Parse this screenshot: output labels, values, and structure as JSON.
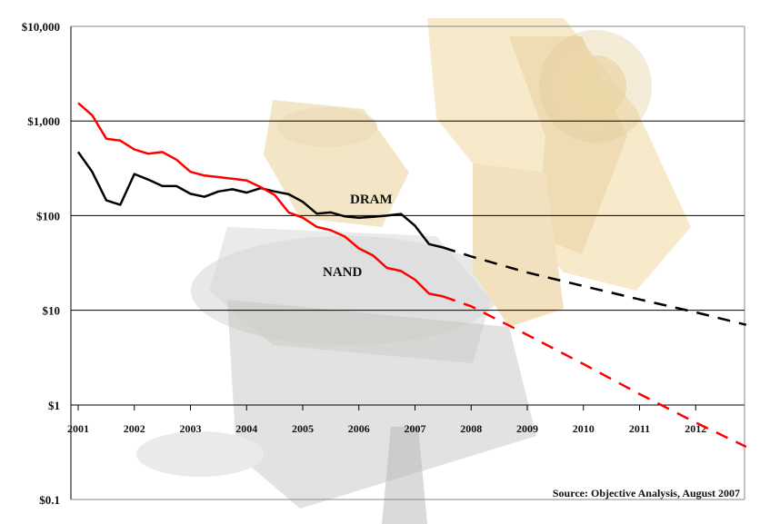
{
  "chart_data": {
    "type": "line",
    "title": "",
    "xlabel": "",
    "ylabel": "",
    "y_scale": "log",
    "ylim": [
      0.1,
      10000
    ],
    "xlim": [
      2001,
      2013
    ],
    "grid": "horizontal major gridlines",
    "y_ticks": [
      {
        "value": 10000,
        "label": "$10,000"
      },
      {
        "value": 1000,
        "label": "$1,000"
      },
      {
        "value": 100,
        "label": "$100"
      },
      {
        "value": 10,
        "label": "$10"
      },
      {
        "value": 1,
        "label": "$1"
      },
      {
        "value": 0.1,
        "label": "$0.1"
      }
    ],
    "x_ticks": [
      {
        "value": 2001,
        "label": "2001"
      },
      {
        "value": 2002,
        "label": "2002"
      },
      {
        "value": 2003,
        "label": "2003"
      },
      {
        "value": 2004,
        "label": "2004"
      },
      {
        "value": 2005,
        "label": "2005"
      },
      {
        "value": 2006,
        "label": "2006"
      },
      {
        "value": 2007,
        "label": "2007"
      },
      {
        "value": 2008,
        "label": "2008"
      },
      {
        "value": 2009,
        "label": "2009"
      },
      {
        "value": 2010,
        "label": "2010"
      },
      {
        "value": 2011,
        "label": "2011"
      },
      {
        "value": 2012,
        "label": "2012"
      }
    ],
    "series": [
      {
        "name": "DRAM",
        "color": "#000000",
        "actual": [
          [
            2001.0,
            470
          ],
          [
            2001.25,
            290
          ],
          [
            2001.5,
            145
          ],
          [
            2001.75,
            130
          ],
          [
            2002.0,
            275
          ],
          [
            2002.25,
            240
          ],
          [
            2002.5,
            205
          ],
          [
            2002.75,
            205
          ],
          [
            2003.0,
            170
          ],
          [
            2003.25,
            158
          ],
          [
            2003.5,
            180
          ],
          [
            2003.75,
            190
          ],
          [
            2004.0,
            175
          ],
          [
            2004.25,
            195
          ],
          [
            2004.5,
            180
          ],
          [
            2004.75,
            168
          ],
          [
            2005.0,
            140
          ],
          [
            2005.25,
            105
          ],
          [
            2005.5,
            108
          ],
          [
            2005.75,
            98
          ],
          [
            2006.0,
            95
          ],
          [
            2006.25,
            97
          ],
          [
            2006.5,
            100
          ],
          [
            2006.75,
            104
          ],
          [
            2007.0,
            78
          ],
          [
            2007.25,
            50
          ],
          [
            2007.5,
            46
          ]
        ],
        "forecast": [
          [
            2007.5,
            46
          ],
          [
            2008.0,
            37
          ],
          [
            2009.0,
            25
          ],
          [
            2010.0,
            18
          ],
          [
            2011.0,
            13
          ],
          [
            2012.0,
            9.5
          ],
          [
            2012.9,
            7
          ]
        ]
      },
      {
        "name": "NAND",
        "color": "#ff0000",
        "actual": [
          [
            2001.0,
            1550
          ],
          [
            2001.25,
            1150
          ],
          [
            2001.5,
            650
          ],
          [
            2001.75,
            620
          ],
          [
            2002.0,
            500
          ],
          [
            2002.25,
            450
          ],
          [
            2002.5,
            470
          ],
          [
            2002.75,
            390
          ],
          [
            2003.0,
            290
          ],
          [
            2003.25,
            265
          ],
          [
            2003.5,
            255
          ],
          [
            2003.75,
            245
          ],
          [
            2004.0,
            235
          ],
          [
            2004.25,
            200
          ],
          [
            2004.5,
            165
          ],
          [
            2004.75,
            108
          ],
          [
            2005.0,
            95
          ],
          [
            2005.25,
            76
          ],
          [
            2005.5,
            70
          ],
          [
            2005.75,
            60
          ],
          [
            2006.0,
            45
          ],
          [
            2006.25,
            38
          ],
          [
            2006.5,
            28
          ],
          [
            2006.75,
            26
          ],
          [
            2007.0,
            21
          ],
          [
            2007.25,
            15
          ],
          [
            2007.5,
            14
          ]
        ],
        "forecast": [
          [
            2007.5,
            14
          ],
          [
            2008.0,
            11
          ],
          [
            2009.0,
            5.5
          ],
          [
            2010.0,
            2.7
          ],
          [
            2011.0,
            1.3
          ],
          [
            2012.0,
            0.65
          ],
          [
            2012.9,
            0.36
          ]
        ]
      }
    ],
    "annotations": [
      {
        "text": "DRAM",
        "series": "DRAM"
      },
      {
        "text": "NAND",
        "series": "NAND"
      }
    ],
    "source": "Source: Objective Analysis, August 2007"
  }
}
